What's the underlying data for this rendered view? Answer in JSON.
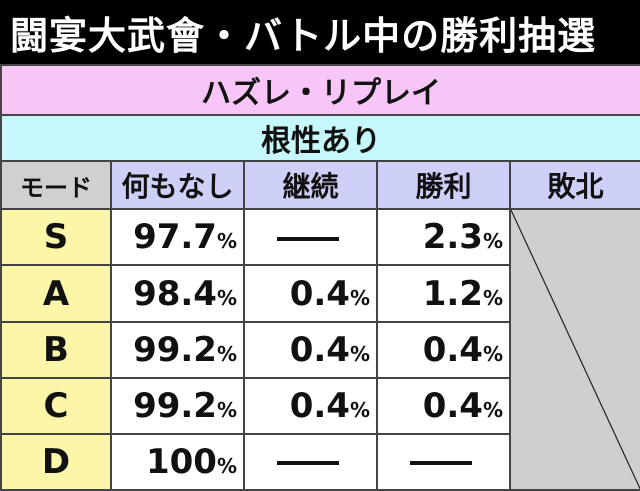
{
  "title": "闘宴大武會・バトル中の勝利抽選",
  "band1": "ハズレ・リプレイ",
  "band2": "根性あり",
  "headers": {
    "mode": "モード",
    "nothing": "何もなし",
    "continue": "継続",
    "win": "勝利",
    "lose": "敗北"
  },
  "rows": [
    {
      "mode": "S",
      "nothing": "97.7",
      "continue": "—",
      "win": "2.3"
    },
    {
      "mode": "A",
      "nothing": "98.4",
      "continue": "0.4",
      "win": "1.2"
    },
    {
      "mode": "B",
      "nothing": "99.2",
      "continue": "0.4",
      "win": "0.4"
    },
    {
      "mode": "C",
      "nothing": "99.2",
      "continue": "0.4",
      "win": "0.4"
    },
    {
      "mode": "D",
      "nothing": "100",
      "continue": "—",
      "win": "—"
    }
  ],
  "unit": "%",
  "colors": {
    "pink_band": "#f7c5f6",
    "cyan_band": "#c6f7fb",
    "header": "#cfd0f7",
    "mode_cells": "#fbf6a8",
    "lose_cell": "#cfcfcf"
  }
}
